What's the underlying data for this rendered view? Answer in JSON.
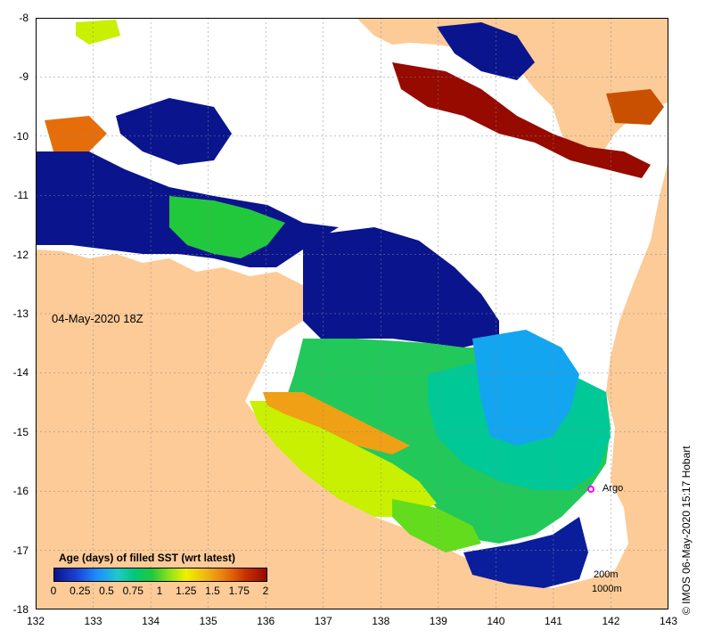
{
  "map": {
    "timestamp": "04-May-2020 18Z",
    "y_axis_labels": [
      "-8",
      "-9",
      "-10",
      "-11",
      "-12",
      "-13",
      "-14",
      "-15",
      "-16",
      "-17",
      "-18"
    ],
    "x_axis_labels": [
      "132",
      "133",
      "134",
      "135",
      "136",
      "137",
      "138",
      "139",
      "140",
      "141",
      "142",
      "143"
    ],
    "lon_range": [
      132,
      143
    ],
    "lat_range": [
      -18,
      -8
    ],
    "argo_label": "Argo",
    "argo_marker_color": "#ff00ff",
    "land_color": "#fccb98",
    "no_data_color": "#ffffff"
  },
  "legend": {
    "title": "Age (days) of filled SST (wrt latest)",
    "ticks": [
      "0",
      "0.25",
      "0.5",
      "0.75",
      "1",
      "1.25",
      "1.5",
      "1.75",
      "2"
    ],
    "range": [
      0,
      2
    ]
  },
  "depth_contours": {
    "line1": "200m",
    "line2": "1000m"
  },
  "credit": "© IMOS 06-May-2020 15:17 Hobart"
}
